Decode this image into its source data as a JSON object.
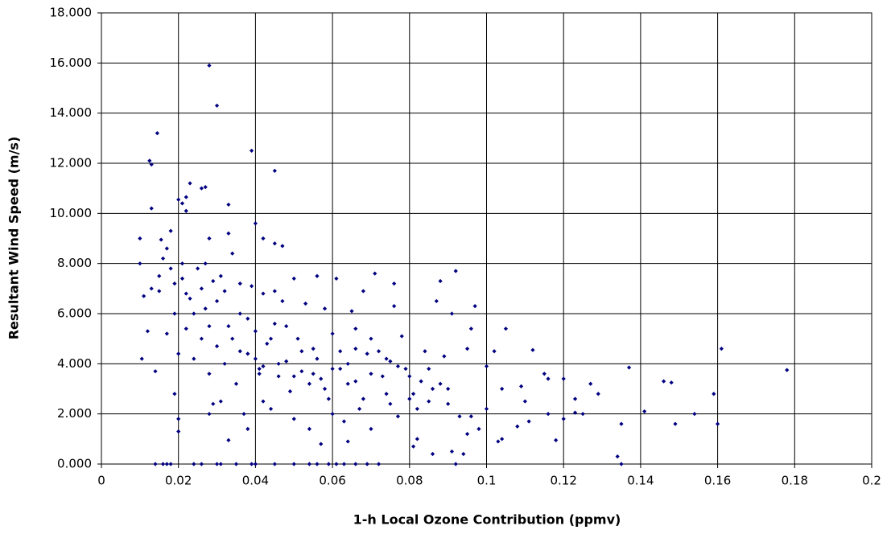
{
  "chart_data": {
    "type": "scatter",
    "x_label": "1-h Local Ozone Contribution (ppmv)",
    "y_label": "Resultant Wind Speed (m/s)",
    "color": "#000080",
    "grid": true,
    "xlim": [
      0,
      0.2
    ],
    "xticks": [
      0,
      0.02,
      0.04,
      0.06,
      0.08,
      0.1,
      0.12,
      0.14,
      0.16,
      0.18,
      0.2
    ],
    "ylim": [
      0,
      18
    ],
    "yticks": [
      {
        "value": 0,
        "label": "0.000"
      },
      {
        "value": 2,
        "label": "2.000"
      },
      {
        "value": 4,
        "label": "4.000"
      },
      {
        "value": 6,
        "label": "6.000"
      },
      {
        "value": 8,
        "label": "8.000"
      },
      {
        "value": 10,
        "label": "10.000"
      },
      {
        "value": 12,
        "label": "12.000"
      },
      {
        "value": 14,
        "label": "14.000"
      },
      {
        "value": 16,
        "label": "16.000"
      },
      {
        "value": 18,
        "label": "18.000"
      }
    ],
    "x": [
      0.028,
      0.03,
      0.0145,
      0.0125,
      0.013,
      0.039,
      0.045,
      0.023,
      0.026,
      0.027,
      0.02,
      0.021,
      0.022,
      0.013,
      0.022,
      0.033,
      0.04,
      0.01,
      0.0155,
      0.018,
      0.028,
      0.033,
      0.042,
      0.045,
      0.047,
      0.014,
      0.016,
      0.017,
      0.018,
      0.024,
      0.026,
      0.03,
      0.031,
      0.035,
      0.039,
      0.04,
      0.045,
      0.05,
      0.054,
      0.056,
      0.059,
      0.061,
      0.063,
      0.066,
      0.069,
      0.072,
      0.092,
      0.135,
      0.178,
      0.161,
      0.159,
      0.16,
      0.154,
      0.149,
      0.148,
      0.146,
      0.141,
      0.137,
      0.135,
      0.134,
      0.129,
      0.127,
      0.125,
      0.123,
      0.123,
      0.12,
      0.12,
      0.118,
      0.116,
      0.116,
      0.115,
      0.112,
      0.111,
      0.11,
      0.109,
      0.108,
      0.105,
      0.104,
      0.104,
      0.102,
      0.1,
      0.1,
      0.098,
      0.097,
      0.096,
      0.096,
      0.095,
      0.094,
      0.093,
      0.092,
      0.091,
      0.09,
      0.089,
      0.088,
      0.087,
      0.086,
      0.085,
      0.084,
      0.083,
      0.082,
      0.081,
      0.08,
      0.079,
      0.078,
      0.077,
      0.076,
      0.076,
      0.075,
      0.074,
      0.073,
      0.071,
      0.07,
      0.069,
      0.068,
      0.067,
      0.066,
      0.065,
      0.064,
      0.063,
      0.062,
      0.061,
      0.06,
      0.059,
      0.058,
      0.057,
      0.056,
      0.055,
      0.054,
      0.053,
      0.052,
      0.051,
      0.05,
      0.049,
      0.048,
      0.047,
      0.046,
      0.045,
      0.044,
      0.043,
      0.042,
      0.041,
      0.04,
      0.039,
      0.038,
      0.037,
      0.036,
      0.035,
      0.034,
      0.033,
      0.032,
      0.031,
      0.03,
      0.029,
      0.028,
      0.027,
      0.026,
      0.025,
      0.024,
      0.023,
      0.022,
      0.021,
      0.02,
      0.019,
      0.018,
      0.017,
      0.016,
      0.015,
      0.014,
      0.013,
      0.012,
      0.011,
      0.01,
      0.0105,
      0.02,
      0.02,
      0.019,
      0.028,
      0.029,
      0.033,
      0.038,
      0.042,
      0.05,
      0.057,
      0.064,
      0.07,
      0.081,
      0.086,
      0.091,
      0.095,
      0.103,
      0.015,
      0.017,
      0.019,
      0.022,
      0.024,
      0.026,
      0.028,
      0.03,
      0.032,
      0.034,
      0.036,
      0.038,
      0.04,
      0.042,
      0.044,
      0.046,
      0.048,
      0.05,
      0.052,
      0.054,
      0.056,
      0.058,
      0.06,
      0.062,
      0.064,
      0.066,
      0.068,
      0.07,
      0.072,
      0.074,
      0.077,
      0.08,
      0.082,
      0.085,
      0.088,
      0.09,
      0.036,
      0.031,
      0.027,
      0.021,
      0.045,
      0.041,
      0.055,
      0.06,
      0.075,
      0.066
    ],
    "values": [
      15.9,
      14.3,
      13.2,
      12.1,
      11.95,
      12.5,
      11.7,
      11.2,
      11.0,
      11.05,
      10.55,
      10.4,
      10.65,
      10.2,
      10.1,
      10.35,
      9.6,
      9.0,
      8.95,
      9.3,
      9.0,
      9.2,
      9.0,
      8.8,
      8.7,
      0,
      0,
      0,
      0,
      0,
      0,
      0,
      0,
      0,
      0,
      0,
      0,
      0,
      0,
      0,
      0,
      0,
      0,
      0,
      0,
      0,
      0,
      0,
      3.75,
      4.6,
      2.8,
      1.6,
      2.0,
      1.6,
      3.25,
      3.3,
      2.1,
      3.85,
      1.6,
      0.3,
      2.8,
      3.2,
      2.0,
      2.6,
      2.05,
      1.8,
      3.4,
      0.95,
      2.0,
      3.4,
      3.6,
      4.55,
      1.7,
      2.5,
      3.1,
      1.5,
      5.4,
      1.0,
      3.0,
      4.5,
      3.9,
      2.2,
      1.4,
      6.3,
      1.9,
      5.4,
      4.6,
      0.4,
      1.9,
      7.7,
      6.0,
      3.0,
      4.3,
      7.3,
      6.5,
      3.0,
      2.5,
      4.5,
      3.3,
      1.0,
      2.8,
      2.6,
      3.8,
      5.1,
      1.9,
      7.2,
      6.3,
      2.4,
      4.2,
      3.5,
      7.6,
      5.0,
      4.4,
      6.9,
      2.2,
      3.3,
      6.1,
      4.0,
      1.7,
      3.8,
      7.4,
      5.2,
      2.6,
      6.2,
      3.4,
      7.5,
      4.6,
      1.4,
      6.4,
      3.7,
      5.0,
      7.4,
      2.9,
      4.1,
      6.5,
      3.5,
      5.6,
      2.2,
      4.8,
      6.8,
      3.8,
      5.3,
      7.1,
      4.4,
      2.0,
      6.0,
      3.2,
      8.4,
      5.5,
      6.9,
      2.5,
      4.7,
      7.3,
      3.6,
      6.2,
      5.0,
      7.8,
      4.2,
      6.6,
      5.4,
      7.4,
      4.4,
      6.0,
      7.8,
      5.2,
      8.2,
      6.9,
      3.7,
      7.0,
      5.3,
      6.7,
      8.0,
      4.2,
      1.8,
      1.3,
      2.8,
      2.0,
      2.4,
      0.95,
      1.4,
      2.5,
      1.8,
      0.8,
      0.9,
      1.4,
      0.7,
      0.4,
      0.5,
      1.2,
      0.9,
      7.5,
      8.6,
      7.2,
      6.8,
      6.0,
      7.0,
      5.5,
      6.5,
      4.0,
      5.0,
      4.5,
      5.8,
      4.2,
      3.9,
      5.0,
      4.0,
      5.5,
      3.5,
      4.5,
      3.2,
      4.2,
      3.0,
      3.8,
      4.5,
      3.2,
      4.6,
      2.6,
      3.6,
      4.5,
      2.8,
      3.9,
      3.5,
      2.2,
      3.8,
      3.2,
      2.4,
      7.2,
      7.5,
      8.0,
      8.0,
      6.9,
      3.6,
      3.6,
      2.0,
      4.1,
      5.4
    ]
  }
}
